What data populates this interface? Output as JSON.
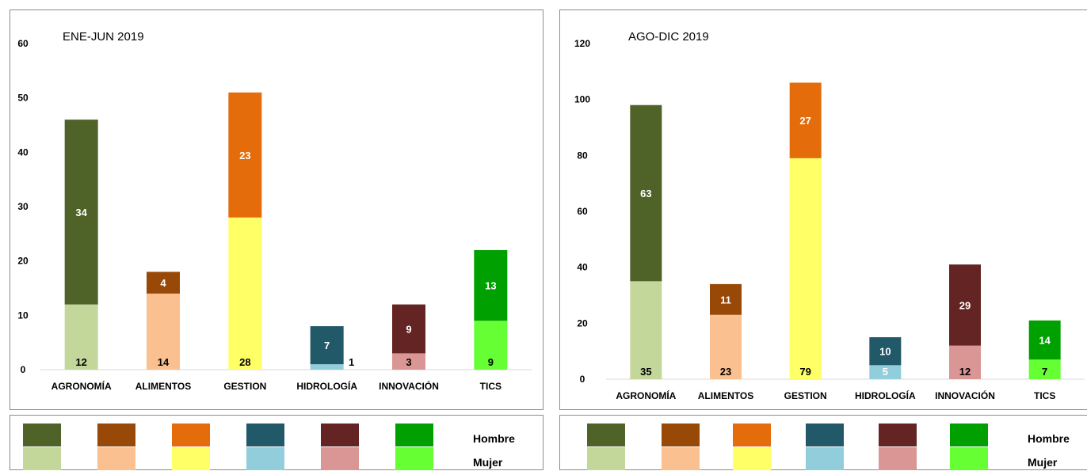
{
  "chart_data": [
    {
      "type": "bar",
      "stacked": true,
      "title": "ENE-JUN 2019",
      "categories": [
        "AGRONOMÍA",
        "ALIMENTOS",
        "GESTION",
        "HIDROLOGÍA",
        "INNOVACIÓN",
        "TICS"
      ],
      "series": [
        {
          "name": "Mujer",
          "values": [
            12,
            14,
            28,
            1,
            3,
            9
          ]
        },
        {
          "name": "Hombre",
          "values": [
            34,
            4,
            23,
            7,
            9,
            13
          ]
        }
      ],
      "ylim": [
        0,
        60
      ],
      "yticks": [
        0,
        10,
        20,
        30,
        40,
        50,
        60
      ],
      "grid": false,
      "legend_position": "bottom"
    },
    {
      "type": "bar",
      "stacked": true,
      "title": "AGO-DIC 2019",
      "categories": [
        "AGRONOMÍA",
        "ALIMENTOS",
        "GESTION",
        "HIDROLOGÍA",
        "INNOVACIÓN",
        "TICS"
      ],
      "series": [
        {
          "name": "Mujer",
          "values": [
            35,
            23,
            79,
            5,
            12,
            7
          ]
        },
        {
          "name": "Hombre",
          "values": [
            63,
            11,
            27,
            10,
            29,
            14
          ]
        }
      ],
      "ylim": [
        0,
        120
      ],
      "yticks": [
        0,
        20,
        40,
        60,
        80,
        100,
        120
      ],
      "grid": false,
      "legend_position": "bottom"
    }
  ],
  "colors": {
    "hombre": [
      "#4f6228",
      "#984807",
      "#e46c0a",
      "#215968",
      "#632423",
      "#00a000"
    ],
    "mujer": [
      "#c4d79b",
      "#fac090",
      "#ffff66",
      "#92cddc",
      "#da9694",
      "#66ff33"
    ],
    "hombre_label_text": [
      "#ffffff",
      "#ffffff",
      "#ffffff",
      "#ffffff",
      "#ffffff",
      "#ffffff"
    ],
    "mujer_label_text": [
      "#000000",
      "#000000",
      "#000000",
      "#ffffff",
      "#000000",
      "#000000"
    ]
  },
  "legend": {
    "hombre_label": "Hombre",
    "mujer_label": "Mujer"
  }
}
